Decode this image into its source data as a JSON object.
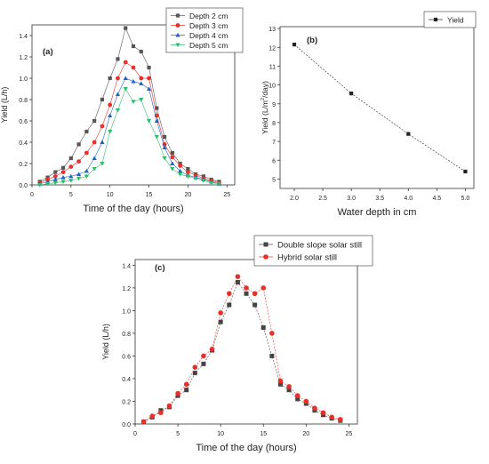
{
  "chart_data": [
    {
      "panel_label": "(a)",
      "type": "line",
      "xlabel": "Time of the day (hours)",
      "ylabel": "Yield (L/h)",
      "xlim": [
        0,
        26
      ],
      "ylim": [
        0,
        1.5
      ],
      "xticks": [
        0,
        5,
        10,
        15,
        20,
        25
      ],
      "yticks": [
        0.0,
        0.2,
        0.4,
        0.6,
        0.8,
        1.0,
        1.2,
        1.4
      ],
      "legend_position": "top-right",
      "x": [
        1,
        2,
        3,
        4,
        5,
        6,
        7,
        8,
        9,
        10,
        11,
        12,
        13,
        14,
        15,
        16,
        17,
        18,
        19,
        20,
        21,
        22,
        23,
        24
      ],
      "series": [
        {
          "name": "Depth 2 cm",
          "color": "#555555",
          "marker": "square",
          "values": [
            0.03,
            0.07,
            0.12,
            0.16,
            0.25,
            0.38,
            0.5,
            0.6,
            0.8,
            1.0,
            1.18,
            1.47,
            1.3,
            1.25,
            1.1,
            0.72,
            0.45,
            0.3,
            0.2,
            0.15,
            0.1,
            0.08,
            0.05,
            0.03
          ]
        },
        {
          "name": "Depth 3 cm",
          "color": "#e8302a",
          "marker": "circle",
          "values": [
            0.02,
            0.05,
            0.08,
            0.12,
            0.17,
            0.22,
            0.3,
            0.4,
            0.55,
            0.75,
            1.0,
            1.15,
            1.1,
            1.0,
            1.0,
            0.65,
            0.38,
            0.26,
            0.18,
            0.12,
            0.09,
            0.06,
            0.04,
            0.02
          ]
        },
        {
          "name": "Depth 4 cm",
          "color": "#1f63c6",
          "marker": "triangle-up",
          "values": [
            0.01,
            0.03,
            0.05,
            0.07,
            0.08,
            0.1,
            0.13,
            0.25,
            0.4,
            0.65,
            0.85,
            1.0,
            0.97,
            0.95,
            0.9,
            0.6,
            0.35,
            0.2,
            0.13,
            0.09,
            0.07,
            0.05,
            0.03,
            0.01
          ]
        },
        {
          "name": "Depth 5 cm",
          "color": "#2bbd6f",
          "marker": "triangle-down",
          "values": [
            0.0,
            0.01,
            0.02,
            0.03,
            0.04,
            0.06,
            0.08,
            0.15,
            0.2,
            0.5,
            0.7,
            0.9,
            0.78,
            0.8,
            0.6,
            0.45,
            0.25,
            0.15,
            0.1,
            0.08,
            0.06,
            0.04,
            0.02,
            0.01
          ]
        }
      ]
    },
    {
      "panel_label": "(b)",
      "type": "line",
      "xlabel": "Water depth in cm",
      "ylabel_parts": [
        "Yield (L/m",
        "2",
        "/day)"
      ],
      "xlim": [
        1.75,
        5.15
      ],
      "ylim": [
        4.5,
        13.1
      ],
      "xticks": [
        2.0,
        2.5,
        3.0,
        3.5,
        4.0,
        4.5,
        5.0
      ],
      "yticks": [
        5,
        6,
        7,
        8,
        9,
        10,
        11,
        12,
        13
      ],
      "legend_position": "top-right",
      "x": [
        2.0,
        3.0,
        4.0,
        5.0
      ],
      "series": [
        {
          "name": "Yield",
          "color": "#222222",
          "marker": "square",
          "values": [
            12.15,
            9.55,
            7.4,
            5.4
          ]
        }
      ]
    },
    {
      "panel_label": "(c)",
      "type": "line",
      "xlabel": "Time of the day (hours)",
      "ylabel": "Yield (L/h)",
      "xlim": [
        0,
        26
      ],
      "ylim": [
        0,
        1.45
      ],
      "xticks": [
        0,
        5,
        10,
        15,
        20,
        25
      ],
      "yticks": [
        0.0,
        0.2,
        0.4,
        0.6,
        0.8,
        1.0,
        1.2,
        1.4
      ],
      "legend_position": "top-right",
      "x": [
        1,
        2,
        3,
        4,
        5,
        6,
        7,
        8,
        9,
        10,
        11,
        12,
        13,
        14,
        15,
        16,
        17,
        18,
        19,
        20,
        21,
        22,
        23,
        24
      ],
      "series": [
        {
          "name": "Double slope solar still",
          "color": "#444444",
          "marker": "square",
          "values": [
            0.02,
            0.06,
            0.12,
            0.15,
            0.25,
            0.3,
            0.45,
            0.53,
            0.65,
            0.9,
            1.05,
            1.25,
            1.15,
            1.05,
            0.85,
            0.6,
            0.35,
            0.3,
            0.22,
            0.18,
            0.12,
            0.08,
            0.05,
            0.03
          ]
        },
        {
          "name": "Hybrid solar still",
          "color": "#e8302a",
          "marker": "circle",
          "values": [
            0.02,
            0.07,
            0.1,
            0.16,
            0.27,
            0.35,
            0.5,
            0.6,
            0.66,
            0.98,
            1.15,
            1.3,
            1.2,
            1.15,
            1.2,
            0.8,
            0.38,
            0.33,
            0.25,
            0.2,
            0.14,
            0.1,
            0.06,
            0.04
          ]
        }
      ]
    }
  ]
}
